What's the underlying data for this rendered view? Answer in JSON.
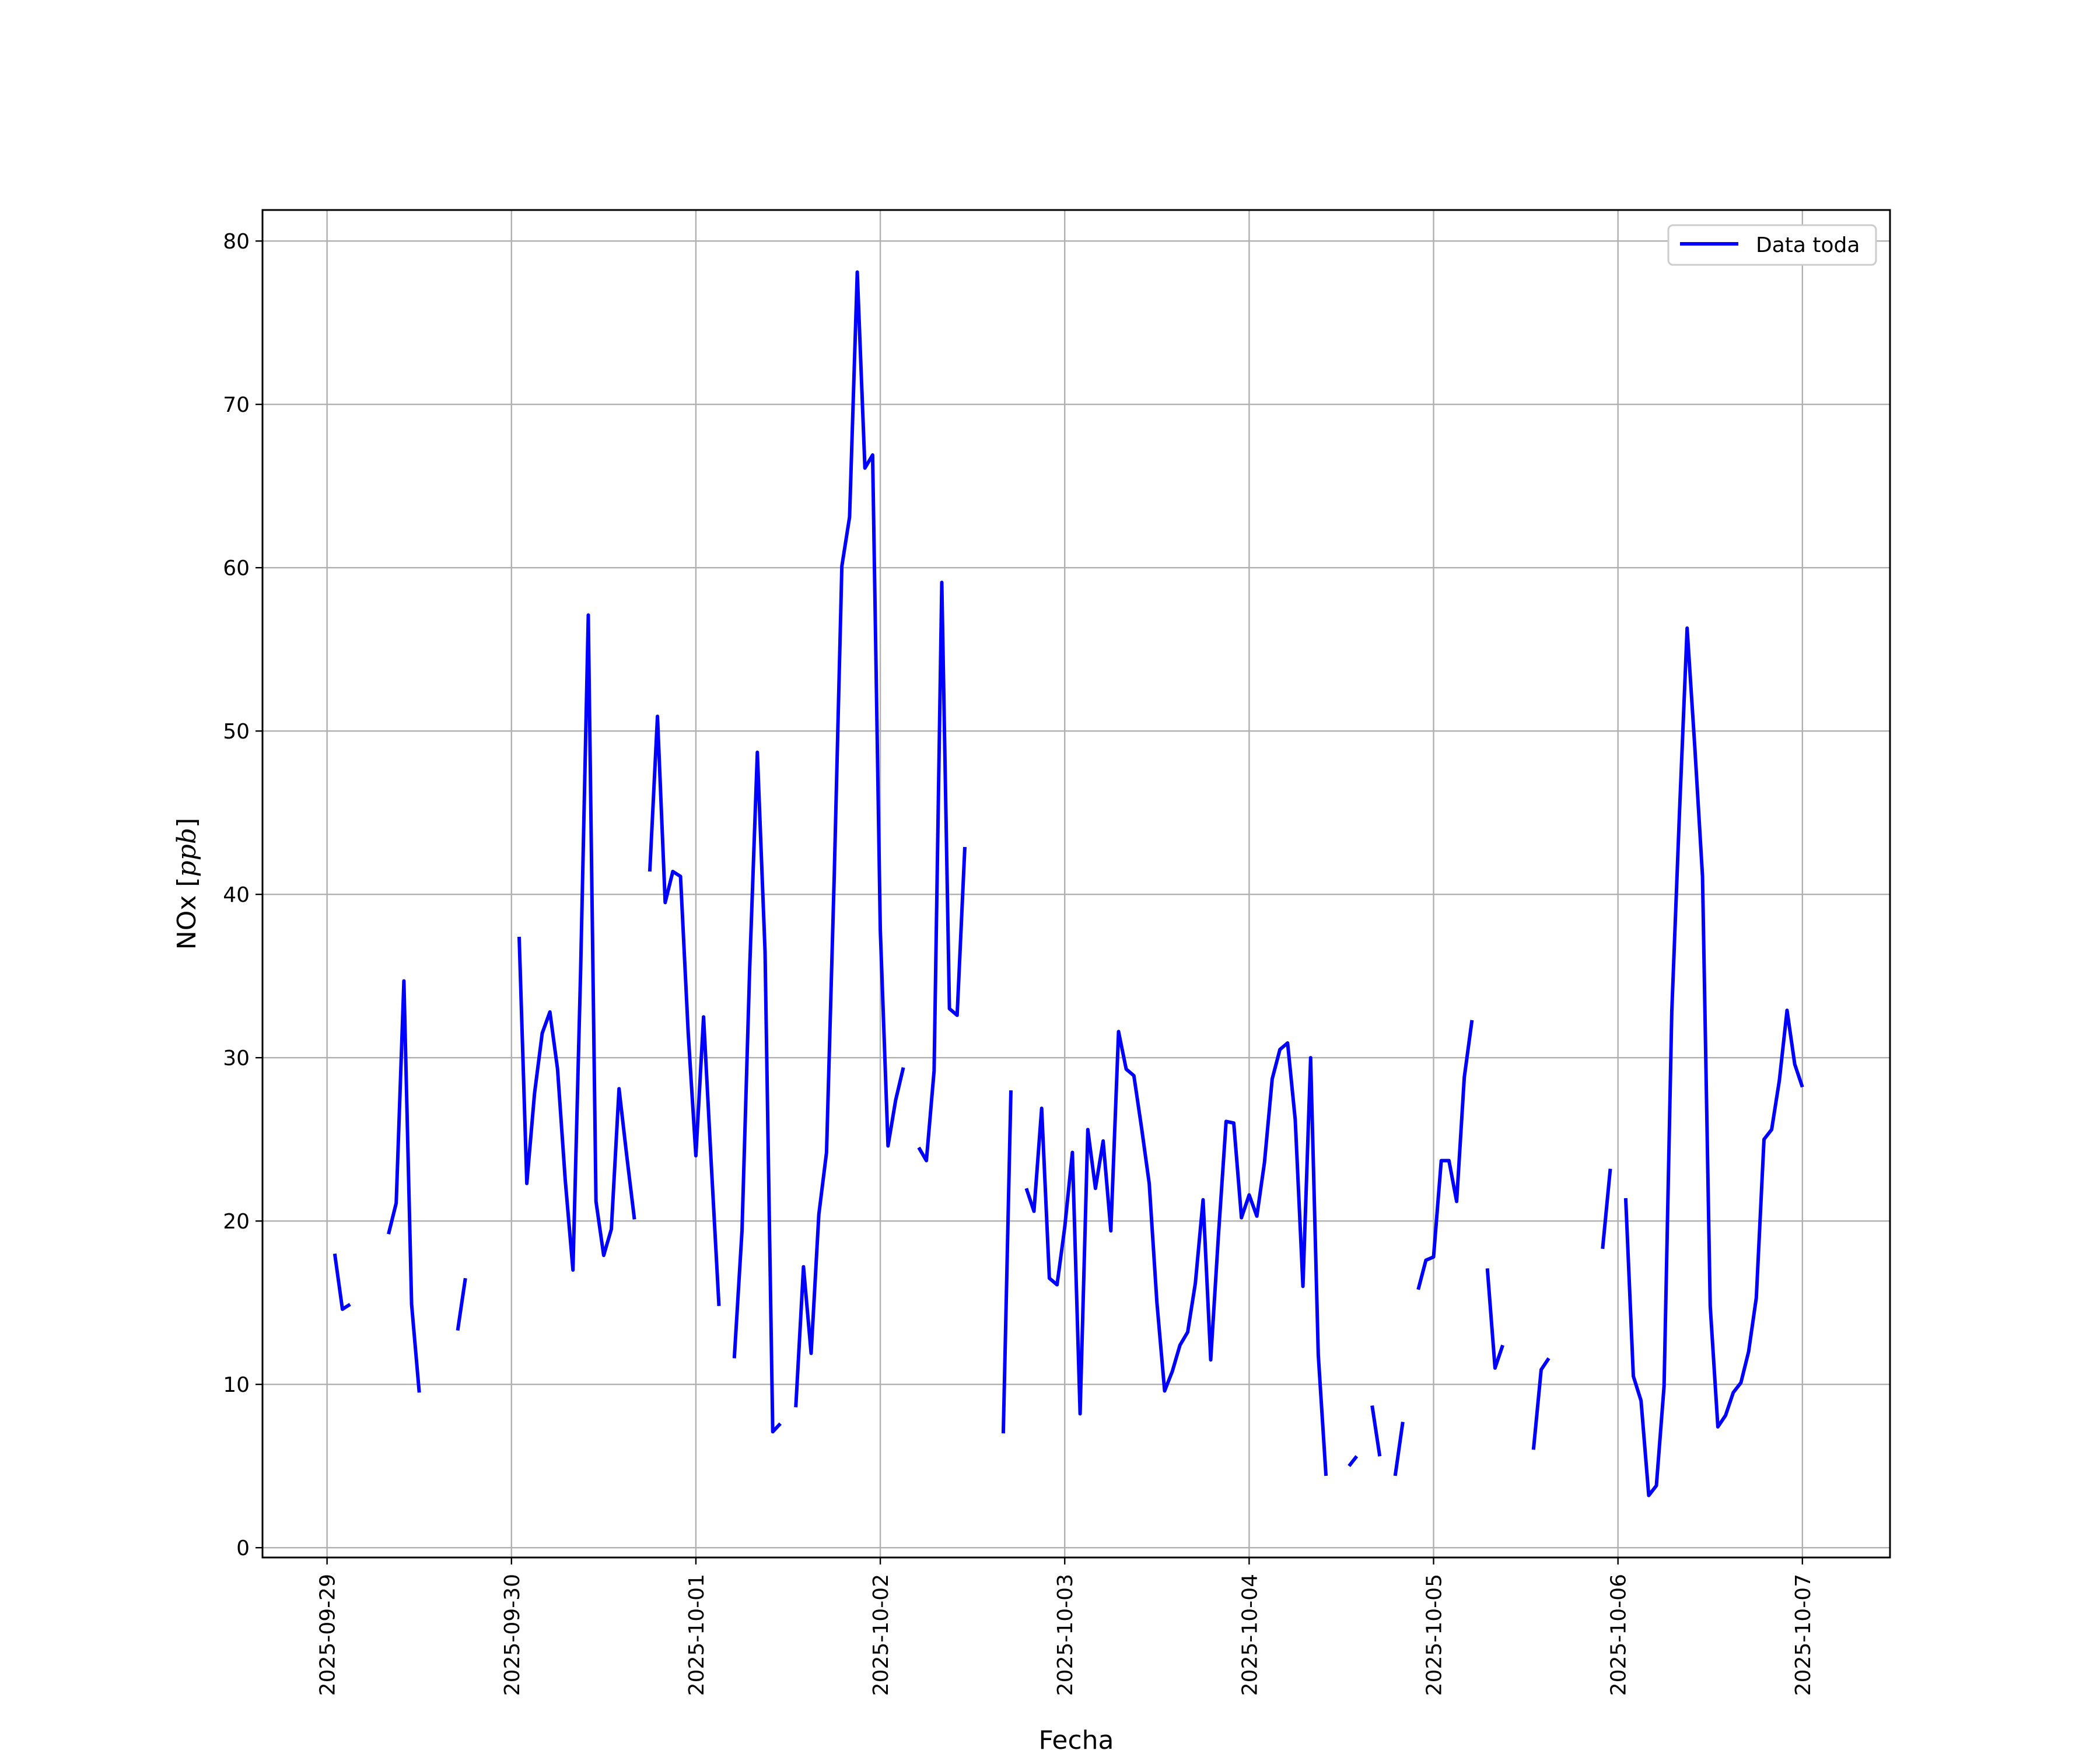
{
  "chart_data": {
    "type": "line",
    "xlabel": "Fecha",
    "ylabel": "NOx [ppb]",
    "ylabel_parts": {
      "prefix": "NOx [",
      "unit": "ppb",
      "suffix": "]"
    },
    "x_tick_labels": [
      "2025-09-29",
      "2025-09-30",
      "2025-10-01",
      "2025-10-02",
      "2025-10-03",
      "2025-10-04",
      "2025-10-05",
      "2025-10-06",
      "2025-10-07"
    ],
    "y_tick_labels": [
      "0",
      "10",
      "20",
      "30",
      "40",
      "50",
      "60",
      "70",
      "80"
    ],
    "ylim": [
      -0.6,
      81.9
    ],
    "xlim": [
      "2025-09-28 15:36",
      "2025-10-07 11:24"
    ],
    "grid": true,
    "legend_position": "top-right",
    "series": [
      {
        "name": "Data toda",
        "color": "#0000ff",
        "segments": [
          [
            [
              "2025-09-29 01:00",
              18.0
            ],
            [
              "2025-09-29 02:00",
              14.6
            ],
            [
              "2025-09-29 03:00",
              14.9
            ]
          ],
          [
            [
              "2025-09-29 08:00",
              19.2
            ],
            [
              "2025-09-29 09:00",
              21.1
            ],
            [
              "2025-09-29 10:00",
              34.7
            ],
            [
              "2025-09-29 11:00",
              14.9
            ],
            [
              "2025-09-29 12:00",
              9.5
            ]
          ],
          [
            [
              "2025-09-29 17:00",
              13.3
            ],
            [
              "2025-09-29 18:00",
              16.5
            ]
          ],
          [
            [
              "2025-09-30 01:00",
              37.4
            ],
            [
              "2025-09-30 02:00",
              22.3
            ],
            [
              "2025-09-30 03:00",
              27.8
            ],
            [
              "2025-09-30 04:00",
              31.5
            ],
            [
              "2025-09-30 05:00",
              32.8
            ],
            [
              "2025-09-30 06:00",
              29.3
            ],
            [
              "2025-09-30 07:00",
              22.5
            ],
            [
              "2025-09-30 08:00",
              17.0
            ],
            [
              "2025-09-30 09:00",
              35.4
            ],
            [
              "2025-09-30 10:00",
              57.1
            ],
            [
              "2025-09-30 11:00",
              21.2
            ],
            [
              "2025-09-30 12:00",
              17.9
            ],
            [
              "2025-09-30 13:00",
              19.5
            ],
            [
              "2025-09-30 14:00",
              28.1
            ],
            [
              "2025-09-30 15:00",
              24.0
            ],
            [
              "2025-09-30 16:00",
              20.1
            ]
          ],
          [
            [
              "2025-09-30 18:00",
              41.4
            ],
            [
              "2025-09-30 19:00",
              50.9
            ],
            [
              "2025-09-30 20:00",
              39.5
            ],
            [
              "2025-09-30 21:00",
              41.4
            ],
            [
              "2025-09-30 22:00",
              41.1
            ],
            [
              "2025-09-30 23:00",
              31.5
            ],
            [
              "2025-10-01 00:00",
              24.0
            ],
            [
              "2025-10-01 01:00",
              32.5
            ],
            [
              "2025-10-01 02:00",
              23.5
            ],
            [
              "2025-10-01 03:00",
              14.8
            ]
          ],
          [
            [
              "2025-10-01 05:00",
              11.6
            ],
            [
              "2025-10-01 06:00",
              19.4
            ],
            [
              "2025-10-01 07:00",
              35.5
            ],
            [
              "2025-10-01 08:00",
              48.7
            ],
            [
              "2025-10-01 09:00",
              36.5
            ],
            [
              "2025-10-01 10:00",
              7.1
            ],
            [
              "2025-10-01 11:00",
              7.6
            ]
          ],
          [
            [
              "2025-10-01 13:00",
              8.6
            ],
            [
              "2025-10-01 14:00",
              17.2
            ],
            [
              "2025-10-01 15:00",
              11.9
            ],
            [
              "2025-10-01 16:00",
              20.4
            ],
            [
              "2025-10-01 17:00",
              24.2
            ],
            [
              "2025-10-01 18:00",
              41.1
            ],
            [
              "2025-10-01 19:00",
              60.1
            ],
            [
              "2025-10-01 20:00",
              63.1
            ],
            [
              "2025-10-01 21:00",
              78.1
            ],
            [
              "2025-10-01 22:00",
              66.1
            ],
            [
              "2025-10-01 23:00",
              66.9
            ],
            [
              "2025-10-02 00:00",
              37.8
            ],
            [
              "2025-10-02 01:00",
              24.6
            ],
            [
              "2025-10-02 02:00",
              27.4
            ],
            [
              "2025-10-02 03:00",
              29.4
            ]
          ],
          [
            [
              "2025-10-02 05:00",
              24.5
            ],
            [
              "2025-10-02 06:00",
              23.7
            ],
            [
              "2025-10-02 07:00",
              29.2
            ],
            [
              "2025-10-02 08:00",
              59.1
            ],
            [
              "2025-10-02 09:00",
              33.0
            ],
            [
              "2025-10-02 10:00",
              32.6
            ],
            [
              "2025-10-02 11:00",
              42.9
            ]
          ],
          [
            [
              "2025-10-02 16:00",
              7.0
            ],
            [
              "2025-10-02 17:00",
              28.0
            ]
          ],
          [
            [
              "2025-10-02 19:00",
              22.0
            ],
            [
              "2025-10-02 20:00",
              20.6
            ],
            [
              "2025-10-02 21:00",
              26.9
            ],
            [
              "2025-10-02 22:00",
              16.5
            ],
            [
              "2025-10-02 23:00",
              16.1
            ],
            [
              "2025-10-03 00:00",
              19.6
            ],
            [
              "2025-10-03 01:00",
              24.2
            ],
            [
              "2025-10-03 02:00",
              8.2
            ],
            [
              "2025-10-03 03:00",
              25.6
            ],
            [
              "2025-10-03 04:00",
              22.0
            ],
            [
              "2025-10-03 05:00",
              24.9
            ],
            [
              "2025-10-03 06:00",
              19.4
            ],
            [
              "2025-10-03 07:00",
              31.6
            ],
            [
              "2025-10-03 08:00",
              29.3
            ],
            [
              "2025-10-03 09:00",
              28.9
            ],
            [
              "2025-10-03 10:00",
              25.7
            ],
            [
              "2025-10-03 11:00",
              22.3
            ],
            [
              "2025-10-03 12:00",
              15.0
            ],
            [
              "2025-10-03 13:00",
              9.6
            ],
            [
              "2025-10-03 14:00",
              10.8
            ],
            [
              "2025-10-03 15:00",
              12.4
            ],
            [
              "2025-10-03 16:00",
              13.2
            ],
            [
              "2025-10-03 17:00",
              16.2
            ],
            [
              "2025-10-03 18:00",
              21.3
            ],
            [
              "2025-10-03 19:00",
              11.5
            ],
            [
              "2025-10-03 20:00",
              19.1
            ],
            [
              "2025-10-03 21:00",
              26.1
            ],
            [
              "2025-10-03 22:00",
              26.0
            ],
            [
              "2025-10-03 23:00",
              20.2
            ],
            [
              "2025-10-04 00:00",
              21.6
            ],
            [
              "2025-10-04 01:00",
              20.3
            ],
            [
              "2025-10-04 02:00",
              23.6
            ],
            [
              "2025-10-04 03:00",
              28.7
            ],
            [
              "2025-10-04 04:00",
              30.5
            ],
            [
              "2025-10-04 05:00",
              30.9
            ],
            [
              "2025-10-04 06:00",
              26.2
            ],
            [
              "2025-10-04 07:00",
              16.0
            ],
            [
              "2025-10-04 08:00",
              30.0
            ],
            [
              "2025-10-04 09:00",
              11.8
            ],
            [
              "2025-10-04 10:00",
              4.4
            ]
          ],
          [
            [
              "2025-10-04 13:00",
              5.0
            ],
            [
              "2025-10-04 14:00",
              5.6
            ]
          ],
          [
            [
              "2025-10-04 16:00",
              8.7
            ],
            [
              "2025-10-04 17:00",
              5.6
            ]
          ],
          [
            [
              "2025-10-04 19:00",
              4.4
            ],
            [
              "2025-10-04 20:00",
              7.7
            ]
          ],
          [
            [
              "2025-10-04 22:00",
              15.8
            ],
            [
              "2025-10-04 23:00",
              17.6
            ],
            [
              "2025-10-05 00:00",
              17.8
            ],
            [
              "2025-10-05 01:00",
              23.7
            ],
            [
              "2025-10-05 02:00",
              23.7
            ],
            [
              "2025-10-05 03:00",
              21.2
            ],
            [
              "2025-10-05 04:00",
              28.8
            ],
            [
              "2025-10-05 05:00",
              32.3
            ]
          ],
          [
            [
              "2025-10-05 07:00",
              17.1
            ],
            [
              "2025-10-05 08:00",
              11.0
            ],
            [
              "2025-10-05 09:00",
              12.4
            ]
          ],
          [
            [
              "2025-10-05 13:00",
              6.0
            ],
            [
              "2025-10-05 14:00",
              10.9
            ],
            [
              "2025-10-05 15:00",
              11.6
            ]
          ],
          [
            [
              "2025-10-05 22:00",
              18.3
            ],
            [
              "2025-10-05 23:00",
              23.2
            ]
          ],
          [
            [
              "2025-10-06 01:00",
              21.4
            ],
            [
              "2025-10-06 02:00",
              10.5
            ],
            [
              "2025-10-06 03:00",
              9.0
            ],
            [
              "2025-10-06 04:00",
              3.2
            ],
            [
              "2025-10-06 05:00",
              3.8
            ],
            [
              "2025-10-06 06:00",
              9.9
            ],
            [
              "2025-10-06 07:00",
              32.8
            ],
            [
              "2025-10-06 08:00",
              45.0
            ],
            [
              "2025-10-06 09:00",
              56.3
            ],
            [
              "2025-10-06 10:00",
              49.0
            ],
            [
              "2025-10-06 11:00",
              41.1
            ],
            [
              "2025-10-06 12:00",
              14.8
            ],
            [
              "2025-10-06 13:00",
              7.4
            ],
            [
              "2025-10-06 14:00",
              8.1
            ],
            [
              "2025-10-06 15:00",
              9.5
            ],
            [
              "2025-10-06 16:00",
              10.1
            ],
            [
              "2025-10-06 17:00",
              12.0
            ],
            [
              "2025-10-06 18:00",
              15.3
            ],
            [
              "2025-10-06 19:00",
              25.0
            ],
            [
              "2025-10-06 20:00",
              25.6
            ],
            [
              "2025-10-06 21:00",
              28.6
            ],
            [
              "2025-10-06 22:00",
              32.9
            ],
            [
              "2025-10-06 23:00",
              29.6
            ],
            [
              "2025-10-07 00:00",
              28.2
            ]
          ]
        ]
      }
    ]
  }
}
